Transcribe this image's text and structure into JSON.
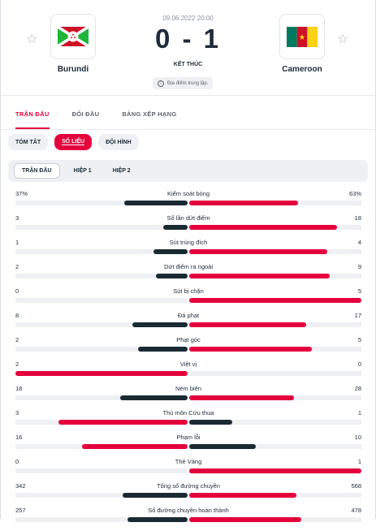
{
  "match": {
    "date": "09.06.2022 20:00",
    "score": "0 - 1",
    "status": "KẾT THÚC",
    "venue": "Địa điểm trung lập.",
    "venue_icon": "info-icon",
    "favorite_icon": "star-icon",
    "home": {
      "name": "Burundi",
      "flag": "burundi-flag"
    },
    "away": {
      "name": "Cameroon",
      "flag": "cameroon-flag"
    }
  },
  "main_tabs": [
    "TRẬN ĐẤU",
    "ĐỐI ĐẦU",
    "BẢNG XẾP HẠNG"
  ],
  "sub_tabs": [
    "TÓM TẮT",
    "SỐ LIỆU",
    "ĐỘI HÌNH"
  ],
  "period_tabs": [
    "TRẬN ĐẤU",
    "HIỆP 1",
    "HIỆP 2"
  ],
  "colors": {
    "accent": "#e4003c",
    "dark": "#1a2a33",
    "track": "#eef0f3"
  },
  "stats": [
    {
      "name": "Kiểm soát bóng",
      "home": "37%",
      "away": "63%",
      "hv": 37,
      "av": 63,
      "hw": "dark",
      "aw": "red"
    },
    {
      "name": "Số lần dứt điểm",
      "home": "3",
      "away": "18",
      "hv": 3,
      "av": 18,
      "hw": "dark",
      "aw": "red"
    },
    {
      "name": "Sút trúng đích",
      "home": "1",
      "away": "4",
      "hv": 1,
      "av": 4,
      "hw": "dark",
      "aw": "red"
    },
    {
      "name": "Dứt điểm ra ngoài",
      "home": "2",
      "away": "9",
      "hv": 2,
      "av": 9,
      "hw": "dark",
      "aw": "red"
    },
    {
      "name": "Sút bị chặn",
      "home": "0",
      "away": "5",
      "hv": 0,
      "av": 5,
      "hw": "dark",
      "aw": "red"
    },
    {
      "name": "Đá phạt",
      "home": "8",
      "away": "17",
      "hv": 8,
      "av": 17,
      "hw": "dark",
      "aw": "red"
    },
    {
      "name": "Phạt góc",
      "home": "2",
      "away": "5",
      "hv": 2,
      "av": 5,
      "hw": "dark",
      "aw": "red"
    },
    {
      "name": "Việt vị",
      "home": "2",
      "away": "0",
      "hv": 2,
      "av": 0,
      "hw": "red",
      "aw": "dark"
    },
    {
      "name": "Ném biên",
      "home": "18",
      "away": "28",
      "hv": 18,
      "av": 28,
      "hw": "dark",
      "aw": "red"
    },
    {
      "name": "Thủ môn Cứu thua",
      "home": "3",
      "away": "1",
      "hv": 3,
      "av": 1,
      "hw": "red",
      "aw": "dark"
    },
    {
      "name": "Phạm lỗi",
      "home": "16",
      "away": "10",
      "hv": 16,
      "av": 10,
      "hw": "red",
      "aw": "dark"
    },
    {
      "name": "Thẻ Vàng",
      "home": "0",
      "away": "1",
      "hv": 0,
      "av": 1,
      "hw": "dark",
      "aw": "red"
    },
    {
      "name": "Tổng số đường chuyền",
      "home": "342",
      "away": "568",
      "hv": 342,
      "av": 568,
      "hw": "dark",
      "aw": "red"
    },
    {
      "name": "Số đường chuyền hoàn thành",
      "home": "257",
      "away": "478",
      "hv": 257,
      "av": 478,
      "hw": "dark",
      "aw": "red"
    }
  ]
}
